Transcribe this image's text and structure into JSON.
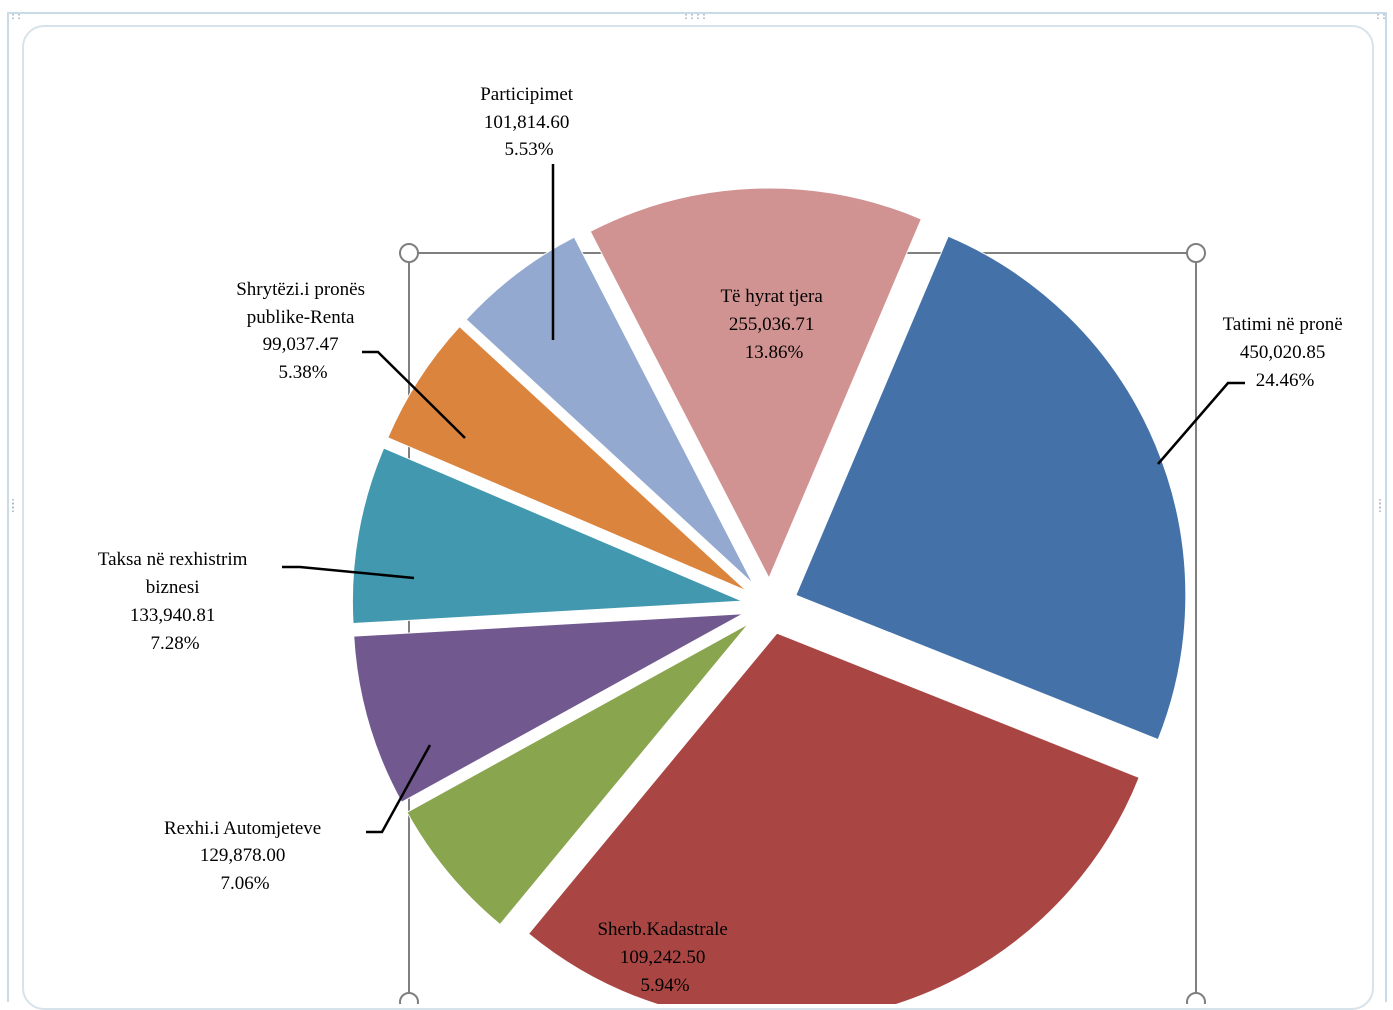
{
  "chart_data": {
    "type": "pie",
    "exploded": true,
    "title": "",
    "slices": [
      {
        "label": "Tatimi në pronë",
        "value_text": "450,020.85",
        "value": 450020.85,
        "percent_text": "24.46%",
        "percent": 24.46,
        "color": "#4472a8"
      },
      {
        "label": "",
        "value": 547000,
        "percent": 29.73,
        "color": "#a94644"
      },
      {
        "label": "Sherb.Kadastrale",
        "value_text": "109,242.50",
        "value": 109242.5,
        "percent_text": "5.94%",
        "percent": 5.94,
        "color": "#89a54e"
      },
      {
        "label": "Rexhi.i Automjeteve",
        "value_text": "129,878.00",
        "value": 129878.0,
        "percent_text": "7.06%",
        "percent": 7.06,
        "color": "#71588f"
      },
      {
        "label": "Taksa në rexhistrim biznesi",
        "label_lines": [
          "Taksa në rexhistrim",
          "biznesi"
        ],
        "value_text": "133,940.81",
        "value": 133940.81,
        "percent_text": "7.28%",
        "percent": 7.28,
        "color": "#4198af"
      },
      {
        "label": "Shrytëzi.i pronës publike-Renta",
        "label_lines": [
          "Shrytëzi.i pronës",
          "publike-Renta"
        ],
        "value_text": "99,037.47",
        "value": 99037.47,
        "percent_text": "5.38%",
        "percent": 5.38,
        "color": "#db843d"
      },
      {
        "label": "Participimet",
        "value_text": "101,814.60",
        "value": 101814.6,
        "percent_text": "5.53%",
        "percent": 5.53,
        "color": "#93a9cf"
      },
      {
        "label": "Të hyrat tjera",
        "value_text": "255,036.71",
        "value": 255036.71,
        "percent_text": "13.86%",
        "percent": 13.86,
        "color": "#d19392"
      }
    ]
  }
}
